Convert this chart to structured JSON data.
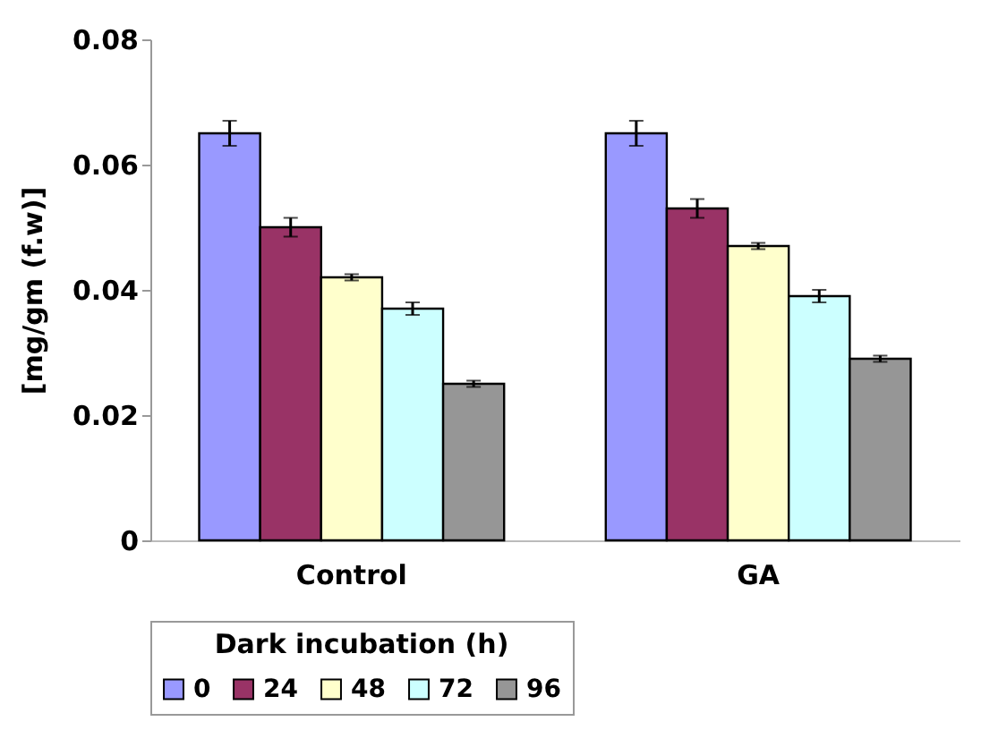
{
  "chart_data": {
    "type": "bar",
    "ylabel": "[mg/gm (f.w)]",
    "legend_title": "Dark incubation (h)",
    "categories": [
      "Control",
      "GA"
    ],
    "series": [
      {
        "name": "0",
        "color": "#9999ff",
        "values": [
          0.065,
          0.065
        ],
        "errors": [
          0.002,
          0.002
        ]
      },
      {
        "name": "24",
        "color": "#993366",
        "values": [
          0.05,
          0.053
        ],
        "errors": [
          0.0015,
          0.0015
        ]
      },
      {
        "name": "48",
        "color": "#ffffcc",
        "values": [
          0.042,
          0.047
        ],
        "errors": [
          0.0005,
          0.0005
        ]
      },
      {
        "name": "72",
        "color": "#ccffff",
        "values": [
          0.037,
          0.039
        ],
        "errors": [
          0.001,
          0.001
        ]
      },
      {
        "name": "96",
        "color": "#969696",
        "values": [
          0.025,
          0.029
        ],
        "errors": [
          0.0005,
          0.0005
        ]
      }
    ],
    "ylim": [
      0,
      0.08
    ],
    "yticks": [
      0,
      0.02,
      0.04,
      0.06,
      0.08
    ],
    "grid": false,
    "legend": "bottom"
  }
}
